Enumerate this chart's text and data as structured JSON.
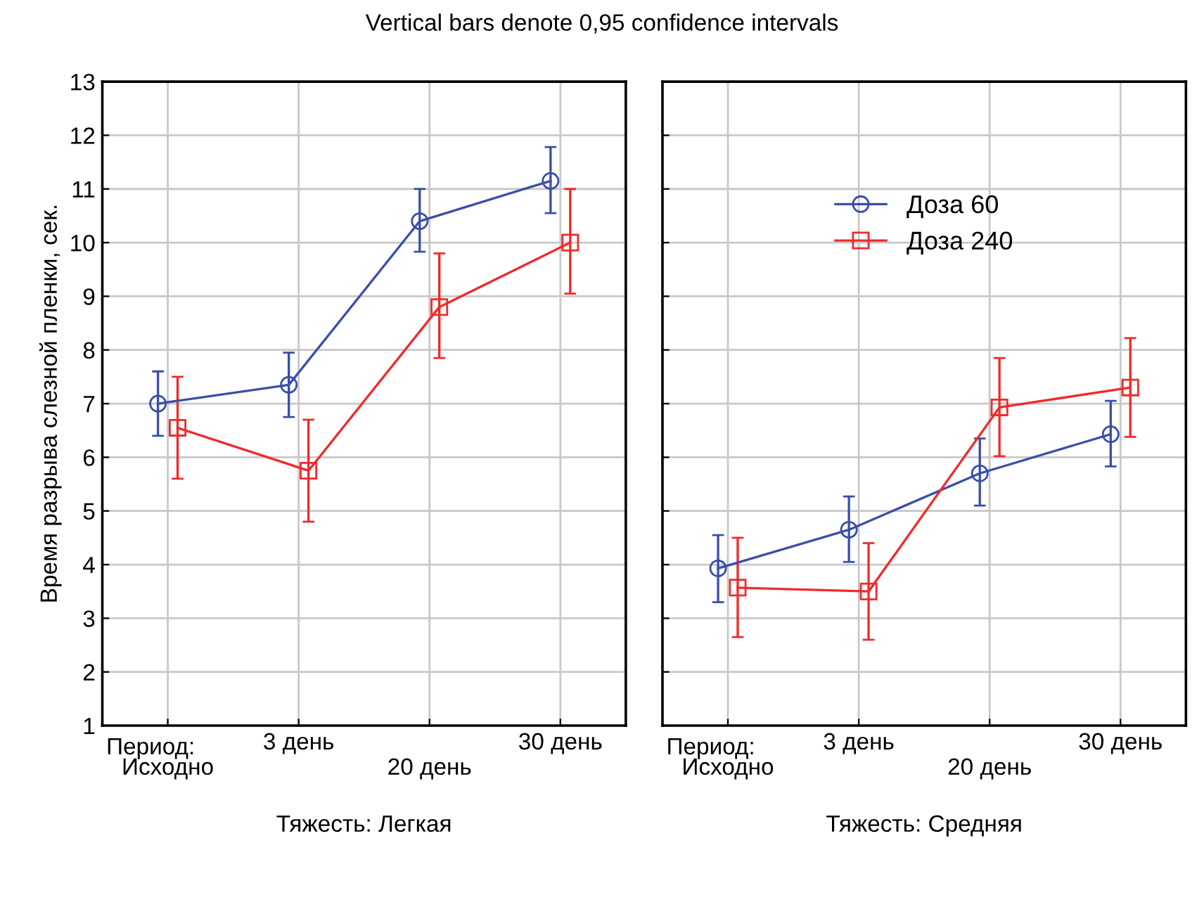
{
  "chart_data": [
    {
      "type": "line",
      "title": "Vertical bars denote 0,95 confidence intervals",
      "ylabel": "Время разрыва слезной пленки, сек.",
      "xlabel": "Тяжесть: Легкая",
      "annotations": [
        "Период:"
      ],
      "categories": [
        "Исходно",
        "3 день",
        "20 день",
        "30 день"
      ],
      "ylim": [
        1,
        13
      ],
      "yticks": [
        1,
        2,
        3,
        4,
        5,
        6,
        7,
        8,
        9,
        10,
        11,
        12,
        13
      ],
      "grid": true,
      "series": [
        {
          "color": "#3a4fa8",
          "marker": "circle",
          "values": [
            7.0,
            7.35,
            10.4,
            11.15
          ],
          "errors": [
            [
              6.4,
              7.6
            ],
            [
              6.75,
              7.95
            ],
            [
              9.83,
              11.0
            ],
            [
              10.55,
              11.78
            ]
          ]
        },
        {
          "color": "#f02a2a",
          "marker": "square",
          "values": [
            6.55,
            5.75,
            8.8,
            10.0
          ],
          "errors": [
            [
              5.6,
              7.5
            ],
            [
              4.8,
              6.7
            ],
            [
              7.85,
              9.8
            ],
            [
              9.05,
              11.0
            ]
          ]
        }
      ]
    },
    {
      "type": "line",
      "xlabel": "Тяжесть: Средняя",
      "annotations": [
        "Период:"
      ],
      "categories": [
        "Исходно",
        "3 день",
        "20 день",
        "30 день"
      ],
      "ylim": [
        1,
        13
      ],
      "yticks": [
        1,
        2,
        3,
        4,
        5,
        6,
        7,
        8,
        9,
        10,
        11,
        12,
        13
      ],
      "tick_labels": "x",
      "grid": true,
      "legend": "top",
      "series": [
        {
          "name": "Доза 60",
          "color": "#3a4fa8",
          "marker": "circle",
          "values": [
            3.93,
            4.65,
            5.7,
            6.43
          ],
          "errors": [
            [
              3.3,
              4.55
            ],
            [
              4.05,
              5.27
            ],
            [
              5.1,
              6.35
            ],
            [
              5.83,
              7.05
            ]
          ]
        },
        {
          "name": "Доза 240",
          "color": "#f02a2a",
          "marker": "square",
          "values": [
            3.57,
            3.5,
            6.93,
            7.3
          ],
          "errors": [
            [
              2.65,
              4.5
            ],
            [
              2.6,
              4.4
            ],
            [
              6.02,
              7.85
            ],
            [
              6.38,
              8.22
            ]
          ]
        }
      ]
    }
  ]
}
